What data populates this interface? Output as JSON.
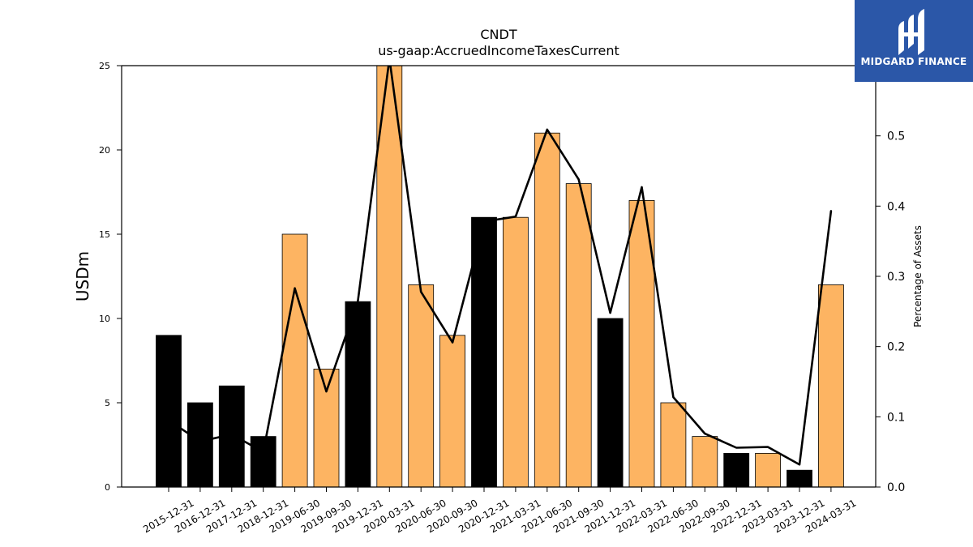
{
  "chart_data": {
    "type": "bar",
    "title": "CNDT",
    "subtitle": "us-gaap:AccruedIncomeTaxesCurrent",
    "ylabel": "USDm",
    "y2label": "Percentage of Assets",
    "ylim": [
      0,
      25
    ],
    "y2lim": [
      0,
      0.6
    ],
    "yticks": [
      0,
      5,
      10,
      15,
      20,
      25
    ],
    "y2ticks": [
      0.0,
      0.1,
      0.2,
      0.3,
      0.4,
      0.5
    ],
    "categories": [
      "2015-12-31",
      "2016-12-31",
      "2017-12-31",
      "2018-12-31",
      "2019-06-30",
      "2019-09-30",
      "2019-12-31",
      "2020-03-31",
      "2020-06-30",
      "2020-09-30",
      "2020-12-31",
      "2021-03-31",
      "2021-06-30",
      "2021-09-30",
      "2021-12-31",
      "2022-03-31",
      "2022-06-30",
      "2022-09-30",
      "2022-12-31",
      "2023-03-31",
      "2023-12-31",
      "2024-03-31"
    ],
    "series": [
      {
        "type": "bar",
        "values": [
          9,
          5,
          6,
          3,
          15,
          7,
          11,
          25,
          12,
          9,
          16,
          16,
          21,
          18,
          10,
          17,
          5,
          3,
          2,
          2,
          1,
          12
        ],
        "bar_colors": [
          "#000000",
          "#000000",
          "#000000",
          "#000000",
          "#fdb462",
          "#fdb462",
          "#000000",
          "#fdb462",
          "#fdb462",
          "#fdb462",
          "#000000",
          "#fdb462",
          "#fdb462",
          "#fdb462",
          "#000000",
          "#fdb462",
          "#fdb462",
          "#fdb462",
          "#000000",
          "#fdb462",
          "#000000",
          "#fdb462"
        ]
      },
      {
        "type": "line",
        "axis": "right",
        "color": "#000000",
        "values": [
          0.095,
          0.065,
          0.075,
          0.05,
          0.283,
          0.136,
          0.265,
          0.61,
          0.278,
          0.206,
          0.378,
          0.385,
          0.509,
          0.438,
          0.248,
          0.427,
          0.128,
          0.076,
          0.056,
          0.057,
          0.032,
          0.393
        ]
      }
    ],
    "grid": false,
    "legend": "none"
  },
  "logo": {
    "text": "MIDGARD FINANCE",
    "background": "#2b57a8"
  }
}
